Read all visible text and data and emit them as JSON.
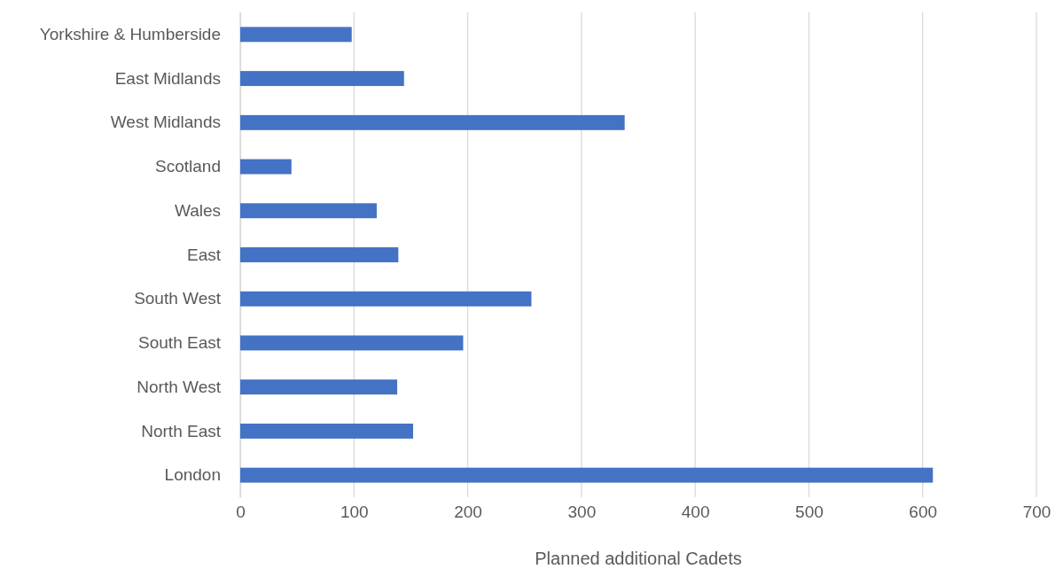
{
  "chart_data": {
    "type": "bar",
    "orientation": "horizontal",
    "xlabel": "Planned additional Cadets",
    "categories": [
      "Yorkshire & Humberside",
      "East Midlands",
      "West Midlands",
      "Scotland",
      "Wales",
      "East",
      "South West",
      "South East",
      "North West",
      "North East",
      "London"
    ],
    "values": [
      98,
      144,
      338,
      45,
      120,
      139,
      256,
      196,
      138,
      152,
      609
    ],
    "color": "#4472c4",
    "xlim": [
      0,
      700
    ],
    "xticks": [
      0,
      100,
      200,
      300,
      400,
      500,
      600,
      700
    ],
    "grid": "x"
  }
}
